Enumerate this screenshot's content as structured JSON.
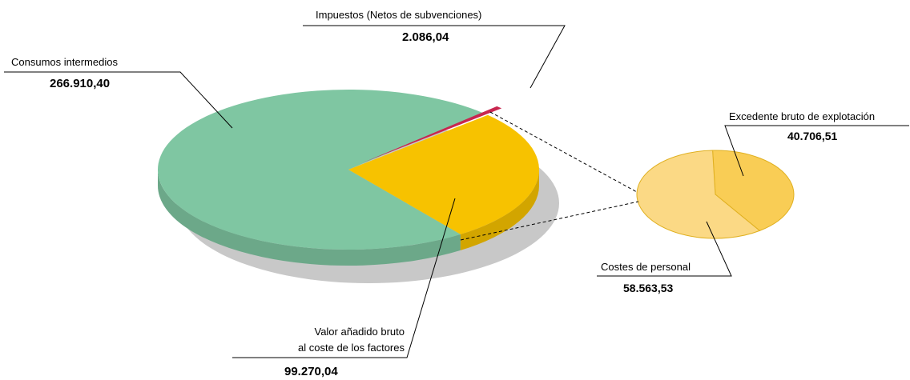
{
  "chart_data": [
    {
      "type": "pie",
      "categories": [
        "Consumos intermedios",
        "Impuestos (Netos de subvenciones)",
        "Valor añadido bruto\nal coste de los factores"
      ],
      "values": [
        266910.4,
        2086.04,
        99270.04
      ],
      "value_labels": [
        "266.910,40",
        "2.086,04",
        "99.270,04"
      ],
      "colors": [
        "#7fc6a2",
        "#c8264f",
        "#f7c200"
      ]
    },
    {
      "type": "pie",
      "categories": [
        "Excedente bruto de explotación",
        "Costes de personal"
      ],
      "values": [
        40706.51,
        58563.53
      ],
      "value_labels": [
        "40.706,51",
        "58.563,53"
      ],
      "colors": [
        "#f9cd55",
        "#fbd985"
      ]
    }
  ]
}
